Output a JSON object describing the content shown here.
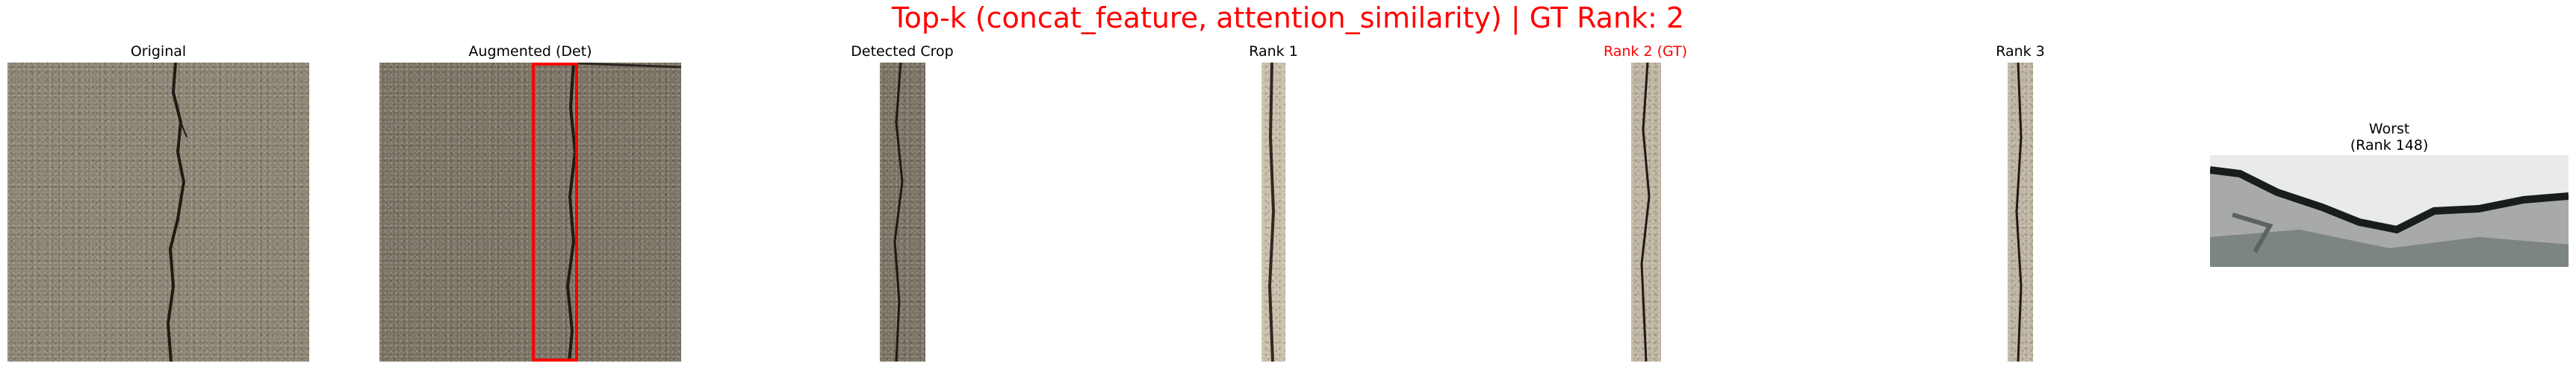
{
  "figure": {
    "title": "Top-k (concat_feature, attention_similarity) | GT Rank: 2",
    "title_color": "#ff0000",
    "gt_highlight_color": "#ff0000",
    "box_color": "#ff0000"
  },
  "panels": [
    {
      "title": "Original"
    },
    {
      "title": "Augmented (Det)"
    },
    {
      "title": "Detected Crop"
    },
    {
      "title": "Rank 1"
    },
    {
      "title": "Rank 2 (GT)"
    },
    {
      "title": "Rank 3"
    },
    {
      "title": "Worst\n(Rank 148)"
    }
  ]
}
